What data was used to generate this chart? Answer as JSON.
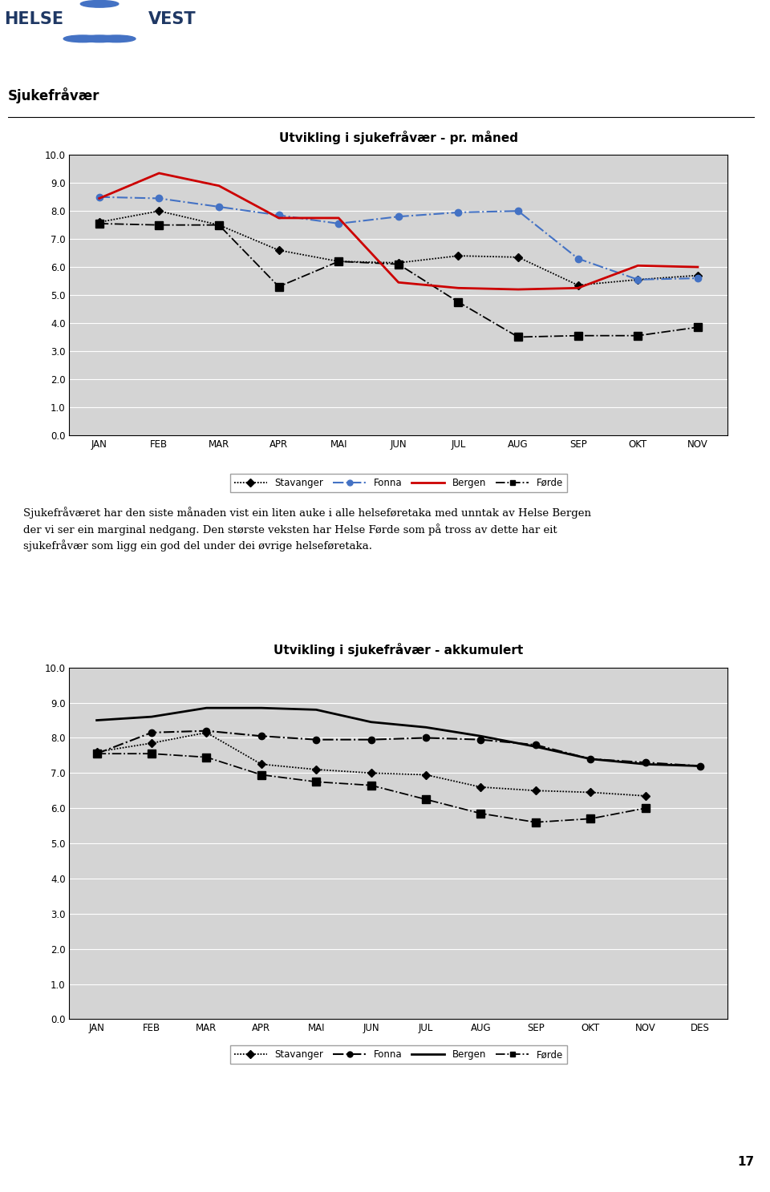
{
  "chart1_title": "Utvikling i sjukefråvær - pr. måned",
  "chart2_title": "Utvikling i sjukefråvær - akkumulert",
  "months1": [
    "JAN",
    "FEB",
    "MAR",
    "APR",
    "MAI",
    "JUN",
    "JUL",
    "AUG",
    "SEP",
    "OKT",
    "NOV"
  ],
  "months2": [
    "JAN",
    "FEB",
    "MAR",
    "APR",
    "MAI",
    "JUN",
    "JUL",
    "AUG",
    "SEP",
    "OKT",
    "NOV",
    "DES"
  ],
  "page_title": "Sjukefråvær",
  "body_text1": "Sjukefråværet har den siste månaden vist ein liten auke i alle helseføretaka med unntak av Helse Bergen",
  "body_text2": "der vi ser ein marginal nedgang. Den største veksten har Helse Førde som på tross av dette har eit",
  "body_text3": "sjukefråvær som ligg ein god del under dei øvrige helseføretaka.",
  "stavanger1": [
    7.6,
    8.0,
    7.5,
    6.6,
    6.2,
    6.15,
    6.4,
    6.35,
    5.35,
    5.55,
    5.7
  ],
  "fonna1": [
    8.5,
    8.45,
    8.15,
    7.85,
    7.55,
    7.8,
    7.95,
    8.0,
    6.3,
    5.55,
    5.6
  ],
  "bergen1": [
    8.45,
    9.35,
    8.9,
    7.75,
    7.75,
    5.45,
    5.25,
    5.2,
    5.25,
    6.05,
    6.0
  ],
  "forde1": [
    7.55,
    7.5,
    7.5,
    5.3,
    6.2,
    6.1,
    4.75,
    3.5,
    3.55,
    3.55,
    3.85
  ],
  "stavanger2": [
    7.6,
    7.85,
    8.15,
    7.25,
    7.1,
    7.0,
    6.95,
    6.6,
    6.5,
    6.45,
    6.35,
    null
  ],
  "fonna2": [
    7.55,
    8.15,
    8.2,
    8.05,
    7.95,
    7.95,
    8.0,
    7.95,
    7.8,
    7.4,
    7.3,
    7.2
  ],
  "bergen2": [
    8.5,
    8.6,
    8.85,
    8.85,
    8.8,
    8.45,
    8.3,
    8.05,
    7.75,
    7.4,
    7.25,
    7.2
  ],
  "forde2": [
    7.55,
    7.55,
    7.45,
    6.95,
    6.75,
    6.65,
    6.25,
    5.85,
    5.6,
    5.7,
    6.0,
    null
  ],
  "ylim": [
    0.0,
    10.0
  ],
  "yticks": [
    0.0,
    1.0,
    2.0,
    3.0,
    4.0,
    5.0,
    6.0,
    7.0,
    8.0,
    9.0,
    10.0
  ],
  "plot_bg": "#d4d4d4",
  "bergen_color": "#cc0000",
  "fonna_color1": "#4472c4",
  "page_number": "17"
}
